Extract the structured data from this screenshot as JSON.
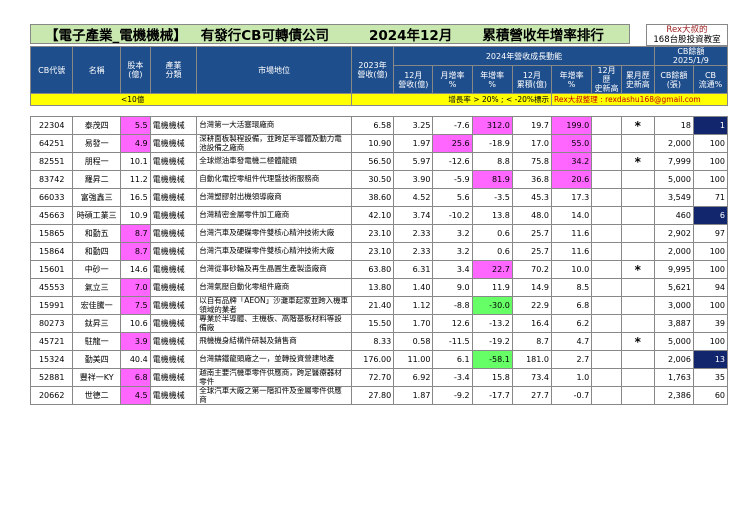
{
  "title": {
    "part1": "【電子產業_電機機械】",
    "part2": "有發行CB可轉債公司",
    "part3": "2024年12月",
    "part4": "累積營收年增率排行"
  },
  "badge": {
    "line1": "Rex大叔的",
    "line2": "168台股投資教室"
  },
  "headers": {
    "cb_code": "CB代號",
    "name": "名稱",
    "capital": "股本\n(億)",
    "industry": "產業\n分類",
    "position": "市場地位",
    "rev2023": "2023年\n營收(億)",
    "growth_group": "2024年營收成長動能",
    "dec_rev": "12月\n營收(億)",
    "mom": "月增率\n%",
    "yoy": "年增率\n%",
    "dec_cum": "12月\n累積(億)",
    "cum_yoy": "年增率\n%",
    "dec_high": "12月歷\n史新高",
    "cum_high": "累月歷\n史新高",
    "cb_group": "CB餘額",
    "cb_date": "2025/1/9",
    "cb_balance": "CB餘額\n(張)",
    "cb_flow": "CB\n流通%"
  },
  "subheader": {
    "capital_note": "<10億",
    "threshold_note": "增長率 > 20% ; < -20%標示",
    "author_note": "Rex大叔整理 : rexdashu168@gmail.com"
  },
  "colors": {
    "header_bg": "#1f4e8c",
    "title_bg": "#c9e8b0",
    "highlight_magenta": "#ff66ff",
    "highlight_green": "#66ff66",
    "highlight_navy": "#12266e",
    "subheader_bg": "#ffff00"
  },
  "rows": [
    {
      "code": "22304",
      "name": "泰茂四",
      "capital": "5.5",
      "capital_hl": true,
      "industry": "電機機械",
      "position": "台灣第一大活塞環廠商",
      "rev2023": "6.58",
      "dec_rev": "3.25",
      "mom": "-7.6",
      "mom_hl": "",
      "yoy": "312.0",
      "yoy_hl": "mag",
      "cum": "19.7",
      "cum_yoy": "199.0",
      "cum_yoy_hl": "mag",
      "dec_high": "",
      "cum_high": "*",
      "cb_bal": "18",
      "cb_flow": "1",
      "flow_hl": true
    },
    {
      "code": "64251",
      "name": "易發一",
      "capital": "4.9",
      "capital_hl": true,
      "industry": "電機機械",
      "position": "深耕面板製程設備，並跨足半導體及動力電池設備之廠商",
      "rev2023": "10.90",
      "dec_rev": "1.97",
      "mom": "25.6",
      "mom_hl": "mag",
      "yoy": "-18.9",
      "yoy_hl": "",
      "cum": "17.0",
      "cum_yoy": "55.0",
      "cum_yoy_hl": "mag",
      "dec_high": "",
      "cum_high": "",
      "cb_bal": "2,000",
      "cb_flow": "100",
      "flow_hl": false
    },
    {
      "code": "82551",
      "name": "朋程一",
      "capital": "10.1",
      "capital_hl": false,
      "industry": "電機機械",
      "position": "全球燃油車發電機二極體龍頭",
      "rev2023": "56.50",
      "dec_rev": "5.97",
      "mom": "-12.6",
      "mom_hl": "",
      "yoy": "8.8",
      "yoy_hl": "",
      "cum": "75.8",
      "cum_yoy": "34.2",
      "cum_yoy_hl": "mag",
      "dec_high": "",
      "cum_high": "*",
      "cb_bal": "7,999",
      "cb_flow": "100",
      "flow_hl": false
    },
    {
      "code": "83742",
      "name": "羅昇二",
      "capital": "11.2",
      "capital_hl": false,
      "industry": "電機機械",
      "position": "自動化電控零組件代理暨技術服務商",
      "rev2023": "30.50",
      "dec_rev": "3.90",
      "mom": "-5.9",
      "mom_hl": "",
      "yoy": "81.9",
      "yoy_hl": "mag",
      "cum": "36.8",
      "cum_yoy": "20.6",
      "cum_yoy_hl": "mag",
      "dec_high": "",
      "cum_high": "",
      "cb_bal": "5,000",
      "cb_flow": "100",
      "flow_hl": false
    },
    {
      "code": "66033",
      "name": "富強鑫三",
      "capital": "16.5",
      "capital_hl": false,
      "industry": "電機機械",
      "position": "台灣塑膠射出機領導廠商",
      "rev2023": "38.60",
      "dec_rev": "4.52",
      "mom": "5.6",
      "mom_hl": "",
      "yoy": "-3.5",
      "yoy_hl": "",
      "cum": "45.3",
      "cum_yoy": "17.3",
      "cum_yoy_hl": "",
      "dec_high": "",
      "cum_high": "",
      "cb_bal": "3,549",
      "cb_flow": "71",
      "flow_hl": false
    },
    {
      "code": "45663",
      "name": "時碩工業三",
      "capital": "10.9",
      "capital_hl": false,
      "industry": "電機機械",
      "position": "台灣精密金屬零件加工廠商",
      "rev2023": "42.10",
      "dec_rev": "3.74",
      "mom": "-10.2",
      "mom_hl": "",
      "yoy": "13.8",
      "yoy_hl": "",
      "cum": "48.0",
      "cum_yoy": "14.0",
      "cum_yoy_hl": "",
      "dec_high": "",
      "cum_high": "",
      "cb_bal": "460",
      "cb_flow": "6",
      "flow_hl": true
    },
    {
      "code": "15865",
      "name": "和勤五",
      "capital": "8.7",
      "capital_hl": true,
      "industry": "電機機械",
      "position": "台灣汽車及硬碟零件雙核心精沖技術大廠",
      "rev2023": "23.10",
      "dec_rev": "2.33",
      "mom": "3.2",
      "mom_hl": "",
      "yoy": "0.6",
      "yoy_hl": "",
      "cum": "25.7",
      "cum_yoy": "11.6",
      "cum_yoy_hl": "",
      "dec_high": "",
      "cum_high": "",
      "cb_bal": "2,902",
      "cb_flow": "97",
      "flow_hl": false
    },
    {
      "code": "15864",
      "name": "和勤四",
      "capital": "8.7",
      "capital_hl": true,
      "industry": "電機機械",
      "position": "台灣汽車及硬碟零件雙核心精沖技術大廠",
      "rev2023": "23.10",
      "dec_rev": "2.33",
      "mom": "3.2",
      "mom_hl": "",
      "yoy": "0.6",
      "yoy_hl": "",
      "cum": "25.7",
      "cum_yoy": "11.6",
      "cum_yoy_hl": "",
      "dec_high": "",
      "cum_high": "",
      "cb_bal": "2,000",
      "cb_flow": "100",
      "flow_hl": false
    },
    {
      "code": "15601",
      "name": "中砂一",
      "capital": "14.6",
      "capital_hl": false,
      "industry": "電機機械",
      "position": "台灣從事砂輪及再生晶圓生產製造廠商",
      "rev2023": "63.80",
      "dec_rev": "6.31",
      "mom": "3.4",
      "mom_hl": "",
      "yoy": "22.7",
      "yoy_hl": "mag",
      "cum": "70.2",
      "cum_yoy": "10.0",
      "cum_yoy_hl": "",
      "dec_high": "",
      "cum_high": "*",
      "cb_bal": "9,995",
      "cb_flow": "100",
      "flow_hl": false
    },
    {
      "code": "45553",
      "name": "氣立三",
      "capital": "7.0",
      "capital_hl": true,
      "industry": "電機機械",
      "position": "台灣氣壓自動化零組件廠商",
      "rev2023": "13.80",
      "dec_rev": "1.40",
      "mom": "9.0",
      "mom_hl": "",
      "yoy": "11.9",
      "yoy_hl": "",
      "cum": "14.9",
      "cum_yoy": "8.5",
      "cum_yoy_hl": "",
      "dec_high": "",
      "cum_high": "",
      "cb_bal": "5,621",
      "cb_flow": "94",
      "flow_hl": false
    },
    {
      "code": "15991",
      "name": "宏佳騰一",
      "capital": "7.5",
      "capital_hl": true,
      "industry": "電機機械",
      "position": "以自有品牌「AEON」沙灘車起家並跨入機車領域的業者",
      "rev2023": "21.40",
      "dec_rev": "1.12",
      "mom": "-8.8",
      "mom_hl": "",
      "yoy": "-30.0",
      "yoy_hl": "grn",
      "cum": "22.9",
      "cum_yoy": "6.8",
      "cum_yoy_hl": "",
      "dec_high": "",
      "cum_high": "",
      "cb_bal": "3,000",
      "cb_flow": "100",
      "flow_hl": false
    },
    {
      "code": "80273",
      "name": "鈦昇三",
      "capital": "10.6",
      "capital_hl": false,
      "industry": "電機機械",
      "position": "專業於半導體、主機板、高階基板材料等設備廠",
      "rev2023": "15.50",
      "dec_rev": "1.70",
      "mom": "12.6",
      "mom_hl": "",
      "yoy": "-13.2",
      "yoy_hl": "",
      "cum": "16.4",
      "cum_yoy": "6.2",
      "cum_yoy_hl": "",
      "dec_high": "",
      "cum_high": "",
      "cb_bal": "3,887",
      "cb_flow": "39",
      "flow_hl": false
    },
    {
      "code": "45721",
      "name": "駐龍一",
      "capital": "3.9",
      "capital_hl": true,
      "industry": "電機機械",
      "position": "飛機機身結構件研製及銷售商",
      "rev2023": "8.33",
      "dec_rev": "0.58",
      "mom": "-11.5",
      "mom_hl": "",
      "yoy": "-19.2",
      "yoy_hl": "",
      "cum": "8.7",
      "cum_yoy": "4.7",
      "cum_yoy_hl": "",
      "dec_high": "",
      "cum_high": "*",
      "cb_bal": "5,000",
      "cb_flow": "100",
      "flow_hl": false
    },
    {
      "code": "15324",
      "name": "勤美四",
      "capital": "40.4",
      "capital_hl": false,
      "industry": "電機機械",
      "position": "台灣鑄鐵龍頭廠之一，並轉投資營建地產",
      "rev2023": "176.00",
      "dec_rev": "11.00",
      "mom": "6.1",
      "mom_hl": "",
      "yoy": "-58.1",
      "yoy_hl": "grn",
      "cum": "181.0",
      "cum_yoy": "2.7",
      "cum_yoy_hl": "",
      "dec_high": "",
      "cum_high": "",
      "cb_bal": "2,006",
      "cb_flow": "13",
      "flow_hl": true
    },
    {
      "code": "52881",
      "name": "豐祥一KY",
      "capital": "6.8",
      "capital_hl": true,
      "industry": "電機機械",
      "position": "越南主要汽機車零件供應商，跨足醫療器材零件",
      "rev2023": "72.70",
      "dec_rev": "6.92",
      "mom": "-3.4",
      "mom_hl": "",
      "yoy": "15.8",
      "yoy_hl": "",
      "cum": "73.4",
      "cum_yoy": "1.0",
      "cum_yoy_hl": "",
      "dec_high": "",
      "cum_high": "",
      "cb_bal": "1,763",
      "cb_flow": "35",
      "flow_hl": false
    },
    {
      "code": "20662",
      "name": "世德二",
      "capital": "4.5",
      "capital_hl": true,
      "industry": "電機機械",
      "position": "全球汽車大廠之第一階扣件及金屬零件供應商",
      "rev2023": "27.80",
      "dec_rev": "1.87",
      "mom": "-9.2",
      "mom_hl": "",
      "yoy": "-17.7",
      "yoy_hl": "",
      "cum": "27.7",
      "cum_yoy": "-0.7",
      "cum_yoy_hl": "",
      "dec_high": "",
      "cum_high": "",
      "cb_bal": "2,386",
      "cb_flow": "60",
      "flow_hl": false
    }
  ]
}
